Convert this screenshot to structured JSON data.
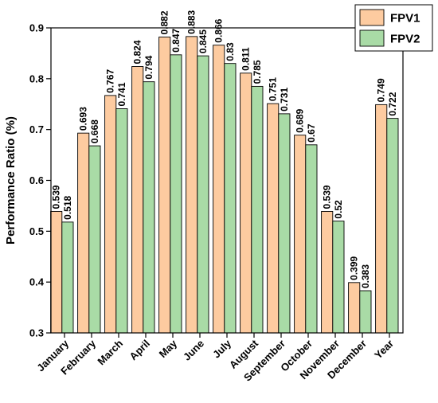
{
  "chart_data": {
    "type": "bar",
    "title": "",
    "xlabel": "",
    "ylabel": "Performance Ratio (%)",
    "ylim": [
      0.3,
      0.9
    ],
    "yticks": [
      "0.3",
      "0.4",
      "0.5",
      "0.6",
      "0.7",
      "0.8",
      "0.9"
    ],
    "categories": [
      "January",
      "February",
      "March",
      "April",
      "May",
      "June",
      "July",
      "August",
      "September",
      "October",
      "November",
      "December",
      "Year"
    ],
    "series": [
      {
        "name": "FPV1",
        "color": "#FDCBA0",
        "values": [
          0.539,
          0.693,
          0.767,
          0.824,
          0.882,
          0.883,
          0.866,
          0.811,
          0.751,
          0.689,
          0.539,
          0.399,
          0.749
        ],
        "labels": [
          "0.539",
          "0.693",
          "0.767",
          "0.824",
          "0.882",
          "0.883",
          "0.866",
          "0.811",
          "0.751",
          "0.689",
          "0.539",
          "0.399",
          "0.749"
        ]
      },
      {
        "name": "FPV2",
        "color": "#A9DBA6",
        "values": [
          0.518,
          0.668,
          0.741,
          0.794,
          0.847,
          0.845,
          0.83,
          0.785,
          0.731,
          0.67,
          0.52,
          0.383,
          0.722
        ],
        "labels": [
          "0.518",
          "0.668",
          "0.741",
          "0.794",
          "0.847",
          "0.845",
          "0.83",
          "0.785",
          "0.731",
          "0.67",
          "0.52",
          "0.383",
          "0.722"
        ]
      }
    ],
    "grid": false,
    "legend": "top-right"
  }
}
